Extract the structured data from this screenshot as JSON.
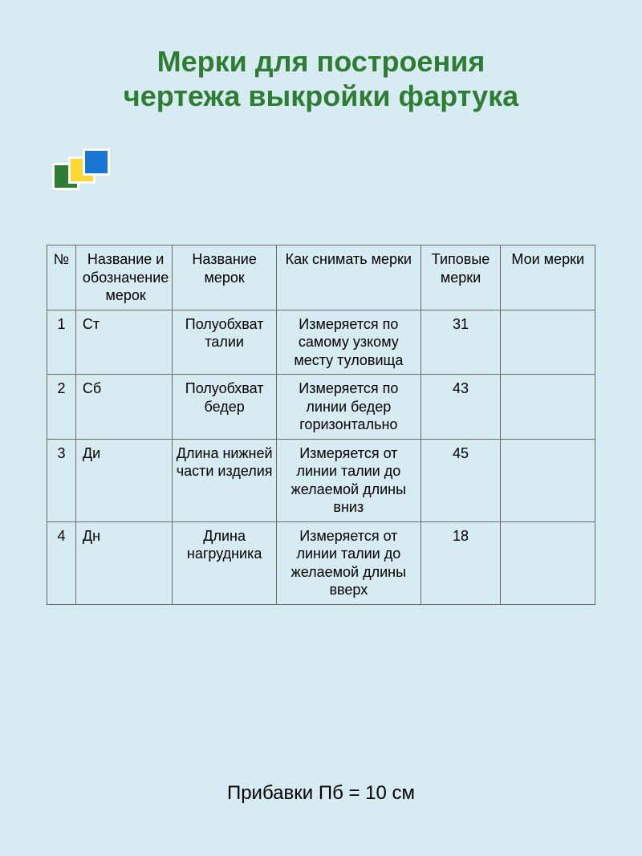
{
  "title_line1": "Мерки для построения",
  "title_line2": "чертежа выкройки фартука",
  "decoration": {
    "colors": [
      "#2e7d32",
      "#fdd835",
      "#1976d2"
    ],
    "border": "#ffffff"
  },
  "table": {
    "headers": {
      "num": "№",
      "abbr": "Название и обозначение мерок",
      "name": "Название мерок",
      "how": "Как снимать мерки",
      "typ": "Типовые мерки",
      "my": "Мои мерки"
    },
    "rows": [
      {
        "num": "1",
        "abbr": "Ст",
        "name": "Полуобхват талии",
        "how": "Измеряется по самому узкому месту туловища",
        "typ": "31",
        "my": ""
      },
      {
        "num": "2",
        "abbr": "Сб",
        "name": "Полуобхват бедер",
        "how": "Измеряется по линии бедер горизонтально",
        "typ": "43",
        "my": ""
      },
      {
        "num": "3",
        "abbr": "Ди",
        "name": "Длина нижней части изделия",
        "how": "Измеряется от линии талии до желаемой длины вниз",
        "typ": "45",
        "my": ""
      },
      {
        "num": "4",
        "abbr": "Дн",
        "name": "Длина нагрудника",
        "how": "Измеряется от линии талии до желаемой длины вверх",
        "typ": "18",
        "my": ""
      }
    ]
  },
  "footer": "Прибавки Пб = 10 см",
  "colors": {
    "background": "#d6ebf2",
    "title": "#2e7d32",
    "border": "#6b6b6b",
    "text": "#000000"
  },
  "typography": {
    "title_fontsize": 36,
    "table_fontsize": 18,
    "footer_fontsize": 24
  }
}
